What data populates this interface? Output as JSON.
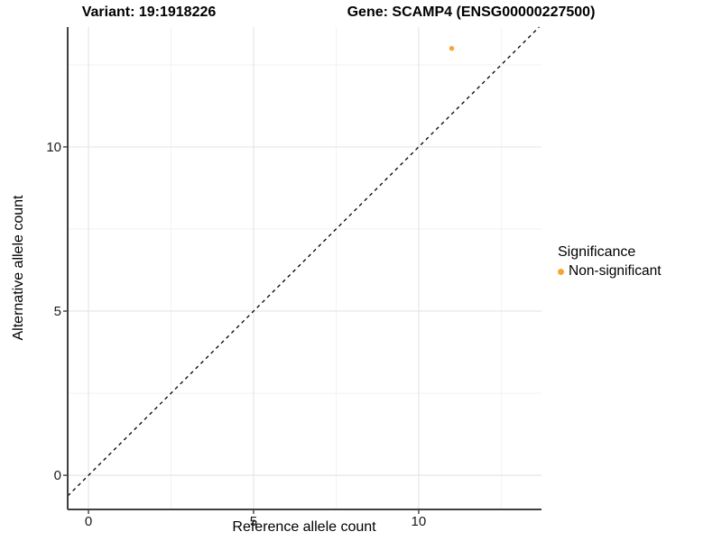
{
  "header": {
    "variant_title": "Variant: 19:1918226",
    "gene_title": "Gene: SCAMP4 (ENSG00000227500)"
  },
  "legend": {
    "title": "Significance",
    "items": [
      {
        "label": "Non-significant",
        "color": "#F8A432"
      }
    ]
  },
  "colors": {
    "point_orange": "#F8A432",
    "major_grid": "#E6E6E6",
    "minor_grid": "#F2F2F2",
    "axis_line": "#404040",
    "reference_line": "#000000"
  },
  "chart_data": {
    "type": "scatter",
    "title": "Variant: 19:1918226 | Gene: SCAMP4 (ENSG00000227500)",
    "xlabel": "Reference allele count",
    "ylabel": "Alternative allele count",
    "xlim": [
      -0.63,
      13.72
    ],
    "ylim": [
      -1.04,
      13.65
    ],
    "x_ticks": [
      0,
      5,
      10
    ],
    "y_ticks": [
      0,
      5,
      10
    ],
    "x_minor_ticks": [
      2.5,
      7.5,
      12.5
    ],
    "y_minor_ticks": [
      2.5,
      7.5,
      12.5
    ],
    "grid": true,
    "legend_position": "right",
    "series": [
      {
        "name": "Non-significant",
        "color": "#F8A432",
        "points": [
          [
            11,
            13
          ]
        ]
      }
    ],
    "reference_line": {
      "kind": "identity",
      "style": "dashed",
      "color": "#000000"
    }
  }
}
